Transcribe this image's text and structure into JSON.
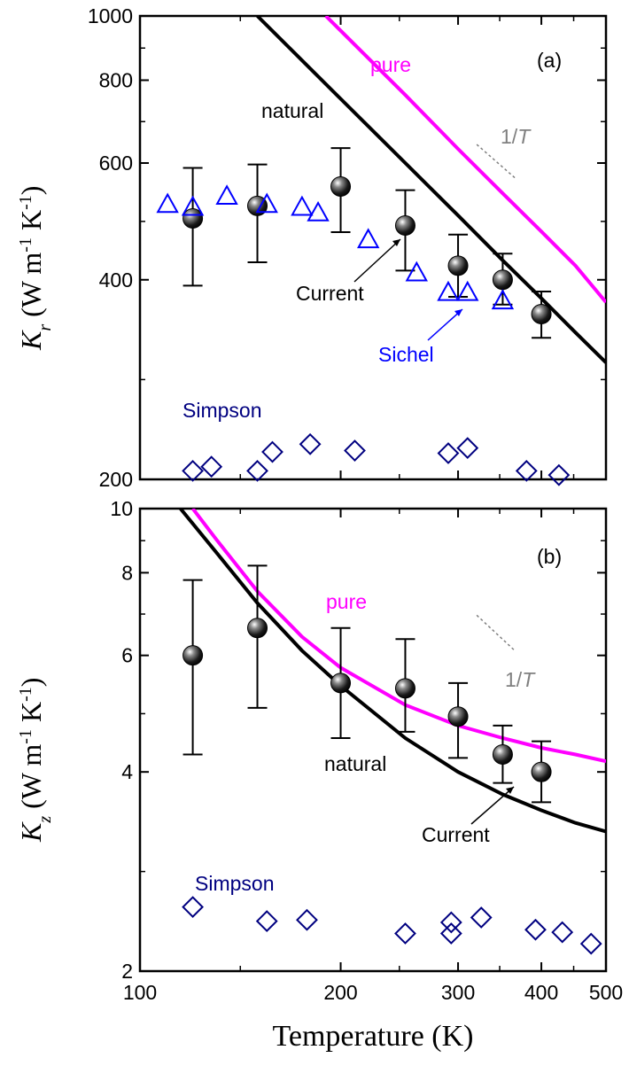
{
  "colors": {
    "pure": "#ff00ff",
    "natural": "#000000",
    "current": "#000000",
    "sichel": "#0000ff",
    "simpson": "#000080",
    "inverse_t": "#808080"
  },
  "chart_data": [
    {
      "type": "scatter",
      "panel_label": "(a)",
      "ylabel_main": "K",
      "ylabel_sub": "r",
      "ylabel_rest": " (W m",
      "ylabel_sup1": "-1",
      "ylabel_mid": " K",
      "ylabel_sup2": "-1",
      "ylabel_end": ")",
      "xscale": "log",
      "yscale": "log",
      "xlim": [
        100,
        500
      ],
      "ylim": [
        200,
        1000
      ],
      "yticks": [
        200,
        400,
        600,
        800,
        1000
      ],
      "yticklabels": [
        "200",
        "400",
        "600",
        "800",
        "1000"
      ],
      "legend": "none",
      "grid": false,
      "annotations": {
        "pure": "pure",
        "natural": "natural",
        "current": "Current",
        "sichel": "Sichel",
        "simpson": "Simpson",
        "inverse_t_num": "1/",
        "inverse_t_var": "T"
      },
      "series": [
        {
          "name": "pure",
          "kind": "line",
          "x": [
            190,
            250,
            300,
            350,
            400,
            450,
            500
          ],
          "y": [
            1000,
            760,
            630,
            540,
            473,
            420,
            370
          ]
        },
        {
          "name": "natural",
          "kind": "line",
          "x": [
            150,
            200,
            250,
            300,
            350,
            400,
            450,
            500
          ],
          "y": [
            1000,
            750,
            600,
            500,
            428,
            375,
            333,
            300
          ]
        },
        {
          "name": "Current",
          "kind": "errorbar",
          "x": [
            120,
            150,
            200,
            250,
            300,
            350,
            400
          ],
          "y": [
            495,
            517,
            553,
            483,
            420,
            400,
            355
          ],
          "yerr_low": [
            392,
            425,
            472,
            413,
            377,
            367,
            327
          ],
          "yerr_high": [
            590,
            597,
            632,
            546,
            468,
            438,
            384
          ]
        },
        {
          "name": "Sichel",
          "kind": "triangle",
          "x": [
            110,
            120,
            135,
            155,
            175,
            185,
            220,
            260,
            290,
            310,
            350
          ],
          "y": [
            520,
            515,
            535,
            520,
            515,
            505,
            460,
            410,
            383,
            383,
            372
          ]
        },
        {
          "name": "Simpson",
          "kind": "diamond",
          "x": [
            120,
            128,
            150,
            158,
            180,
            210,
            290,
            310,
            380,
            425
          ],
          "y": [
            206,
            209,
            206,
            220,
            226,
            221,
            219,
            223,
            206,
            203
          ]
        },
        {
          "name": "1/T",
          "kind": "guide",
          "x": [
            320,
            365
          ],
          "y": [
            640,
            570
          ]
        }
      ]
    },
    {
      "type": "scatter",
      "panel_label": "(b)",
      "ylabel_main": "K",
      "ylabel_sub": "z",
      "ylabel_rest": " (W m",
      "ylabel_sup1": "-1",
      "ylabel_mid": " K",
      "ylabel_sup2": "-1",
      "ylabel_end": ")",
      "xlabel": "Temperature (K)",
      "xscale": "log",
      "yscale": "log",
      "xlim": [
        100,
        500
      ],
      "ylim": [
        2,
        10
      ],
      "xticks": [
        100,
        200,
        300,
        400,
        500
      ],
      "xticklabels": [
        "100",
        "200",
        "300",
        "400",
        "500"
      ],
      "yticks": [
        2,
        4,
        6,
        8,
        10
      ],
      "yticklabels": [
        "2",
        "4",
        "6",
        "8",
        "10"
      ],
      "legend": "none",
      "grid": false,
      "annotations": {
        "pure": "pure",
        "natural": "natural",
        "current": "Current",
        "simpson": "Simpson",
        "inverse_t_num": "1/",
        "inverse_t_var": "T"
      },
      "series": [
        {
          "name": "pure",
          "kind": "line",
          "x": [
            120,
            130,
            150,
            175,
            200,
            250,
            300,
            350,
            400,
            450,
            500
          ],
          "y": [
            10,
            9.0,
            7.5,
            6.4,
            5.75,
            5.05,
            4.7,
            4.5,
            4.35,
            4.25,
            4.15
          ]
        },
        {
          "name": "natural",
          "kind": "line",
          "x": [
            115,
            130,
            150,
            175,
            200,
            250,
            300,
            350,
            400,
            450,
            500
          ],
          "y": [
            10,
            8.6,
            7.2,
            6.1,
            5.4,
            4.5,
            4.0,
            3.7,
            3.5,
            3.35,
            3.25
          ]
        },
        {
          "name": "Current",
          "kind": "errorbar",
          "x": [
            120,
            150,
            200,
            250,
            300,
            350,
            400
          ],
          "y": [
            6.0,
            6.6,
            5.45,
            5.35,
            4.85,
            4.25,
            4.0
          ],
          "yerr_low": [
            4.25,
            5.0,
            4.5,
            4.6,
            4.2,
            3.85,
            3.6
          ],
          "yerr_high": [
            7.8,
            8.2,
            6.6,
            6.35,
            5.45,
            4.7,
            4.45
          ]
        },
        {
          "name": "Simpson",
          "kind": "diamond",
          "x": [
            120,
            155,
            178,
            250,
            293,
            293,
            325,
            392,
            430,
            475
          ],
          "y": [
            2.5,
            2.38,
            2.39,
            2.28,
            2.37,
            2.28,
            2.41,
            2.31,
            2.29,
            2.2
          ]
        },
        {
          "name": "1/T",
          "kind": "guide",
          "x": [
            320,
            365
          ],
          "y": [
            6.9,
            6.1
          ]
        }
      ]
    }
  ]
}
